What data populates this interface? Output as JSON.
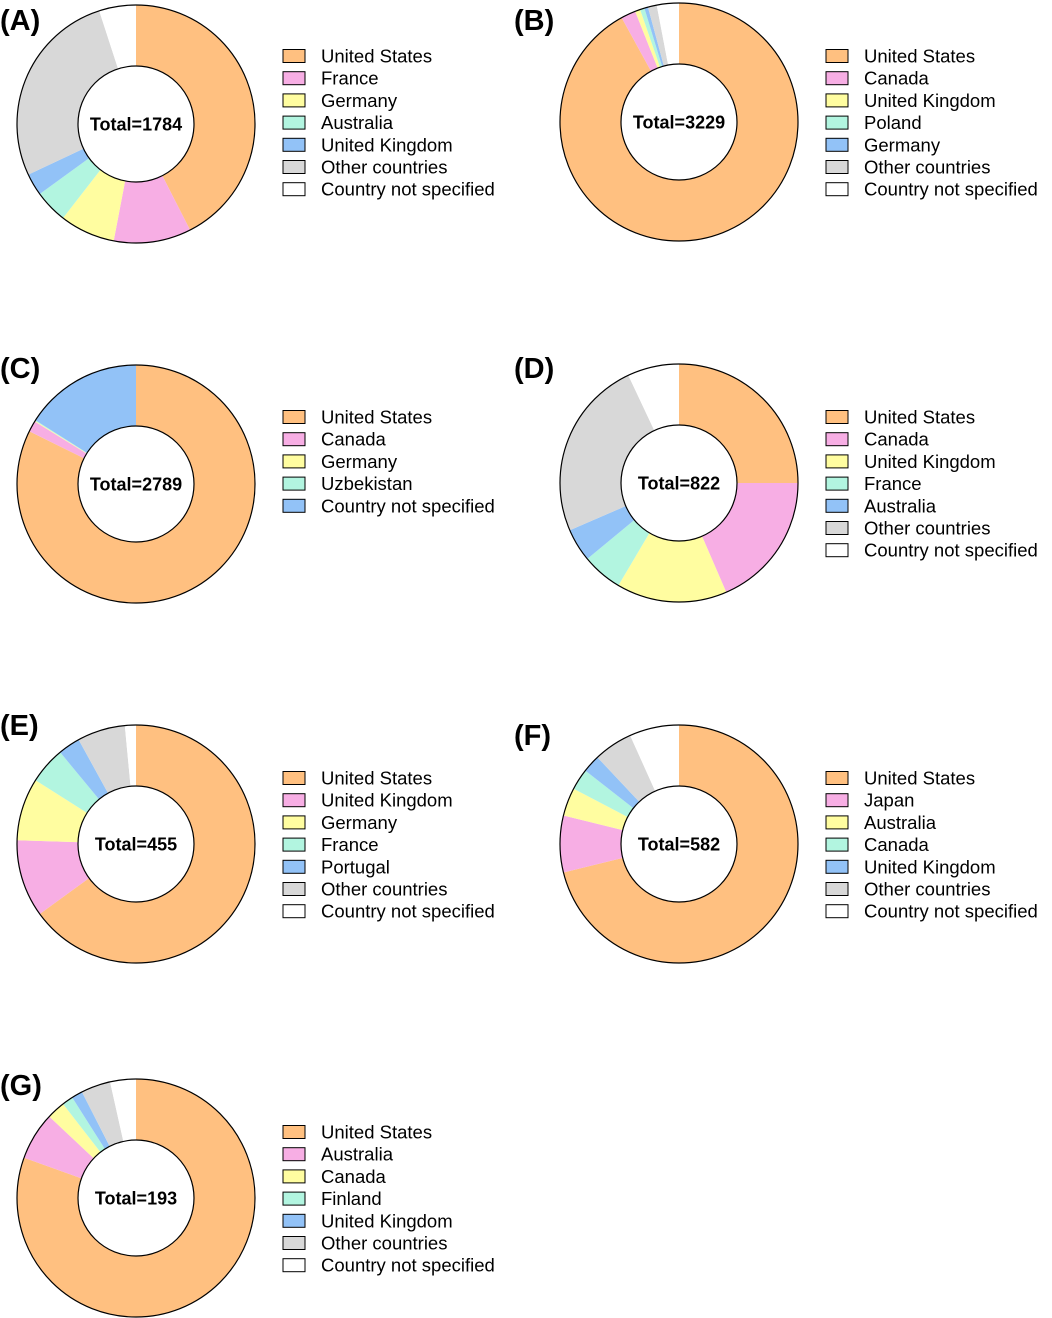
{
  "colors": {
    "orange": "#FFC080",
    "pink": "#F7AEE4",
    "yellow": "#FFFDA0",
    "mint": "#B2F5E0",
    "blue": "#92C2F7",
    "gray": "#D8D8D8",
    "white": "#FFFFFF",
    "outline": "#000000"
  },
  "chart_data": [
    {
      "type": "pie",
      "panel": "(A)",
      "center_label": "Total=1784",
      "series": [
        {
          "name": "United States",
          "value": 42.5,
          "color": "orange"
        },
        {
          "name": "France",
          "value": 10.5,
          "color": "pink"
        },
        {
          "name": "Germany",
          "value": 7.5,
          "color": "yellow"
        },
        {
          "name": "Australia",
          "value": 4.5,
          "color": "mint"
        },
        {
          "name": "United Kingdom",
          "value": 3.0,
          "color": "blue"
        },
        {
          "name": "Other countries",
          "value": 27.0,
          "color": "gray"
        },
        {
          "name": "Country not specified",
          "value": 5.0,
          "color": "white"
        }
      ]
    },
    {
      "type": "pie",
      "panel": "(B)",
      "center_label": "Total=3229",
      "series": [
        {
          "name": "United States",
          "value": 92.0,
          "color": "orange"
        },
        {
          "name": "Canada",
          "value": 2.0,
          "color": "pink"
        },
        {
          "name": "United Kingdom",
          "value": 0.7,
          "color": "yellow"
        },
        {
          "name": "Poland",
          "value": 0.6,
          "color": "mint"
        },
        {
          "name": "Germany",
          "value": 0.5,
          "color": "blue"
        },
        {
          "name": "Other countries",
          "value": 1.2,
          "color": "gray"
        },
        {
          "name": "Country not specified",
          "value": 3.0,
          "color": "white"
        }
      ]
    },
    {
      "type": "pie",
      "panel": "(C)",
      "center_label": "Total=2789",
      "series": [
        {
          "name": "United States",
          "value": 82.3,
          "color": "orange"
        },
        {
          "name": "Canada",
          "value": 1.5,
          "color": "pink"
        },
        {
          "name": "Germany",
          "value": 0.1,
          "color": "yellow"
        },
        {
          "name": "Uzbekistan",
          "value": 0.1,
          "color": "mint"
        },
        {
          "name": "Country not specified",
          "value": 16.0,
          "color": "blue"
        }
      ]
    },
    {
      "type": "pie",
      "panel": "(D)",
      "center_label": "Total=822",
      "series": [
        {
          "name": "United States",
          "value": 25.0,
          "color": "orange"
        },
        {
          "name": "Canada",
          "value": 18.5,
          "color": "pink"
        },
        {
          "name": "United Kingdom",
          "value": 15.0,
          "color": "yellow"
        },
        {
          "name": "France",
          "value": 5.5,
          "color": "mint"
        },
        {
          "name": "Australia",
          "value": 4.5,
          "color": "blue"
        },
        {
          "name": "Other countries",
          "value": 24.5,
          "color": "gray"
        },
        {
          "name": "Country not specified",
          "value": 7.0,
          "color": "white"
        }
      ]
    },
    {
      "type": "pie",
      "panel": "(E)",
      "center_label": "Total=455",
      "series": [
        {
          "name": "United States",
          "value": 65.0,
          "color": "orange"
        },
        {
          "name": "United Kingdom",
          "value": 10.5,
          "color": "pink"
        },
        {
          "name": "Germany",
          "value": 8.5,
          "color": "yellow"
        },
        {
          "name": "France",
          "value": 5.0,
          "color": "mint"
        },
        {
          "name": "Portugal",
          "value": 3.0,
          "color": "blue"
        },
        {
          "name": "Other countries",
          "value": 6.5,
          "color": "gray"
        },
        {
          "name": "Country not specified",
          "value": 1.5,
          "color": "white"
        }
      ]
    },
    {
      "type": "pie",
      "panel": "(F)",
      "center_label": "Total=582",
      "series": [
        {
          "name": "United States",
          "value": 74.0,
          "color": "orange"
        },
        {
          "name": "Japan",
          "value": 8.0,
          "color": "pink"
        },
        {
          "name": "Australia",
          "value": 4.0,
          "color": "yellow"
        },
        {
          "name": "Canada",
          "value": 3.0,
          "color": "mint"
        },
        {
          "name": "United Kingdom",
          "value": 2.5,
          "color": "blue"
        },
        {
          "name": "Other countries",
          "value": 5.5,
          "color": "gray"
        },
        {
          "name": "Country not specified",
          "value": 7.0,
          "color": "white"
        }
      ]
    },
    {
      "type": "pie",
      "panel": "(G)",
      "center_label": "Total=193",
      "series": [
        {
          "name": "United States",
          "value": 80.5,
          "color": "orange"
        },
        {
          "name": "Australia",
          "value": 6.5,
          "color": "pink"
        },
        {
          "name": "Canada",
          "value": 2.5,
          "color": "yellow"
        },
        {
          "name": "Finland",
          "value": 1.5,
          "color": "mint"
        },
        {
          "name": "United Kingdom",
          "value": 1.5,
          "color": "blue"
        },
        {
          "name": "Other countries",
          "value": 4.0,
          "color": "gray"
        },
        {
          "name": "Country not specified",
          "value": 3.5,
          "color": "white"
        }
      ]
    }
  ]
}
